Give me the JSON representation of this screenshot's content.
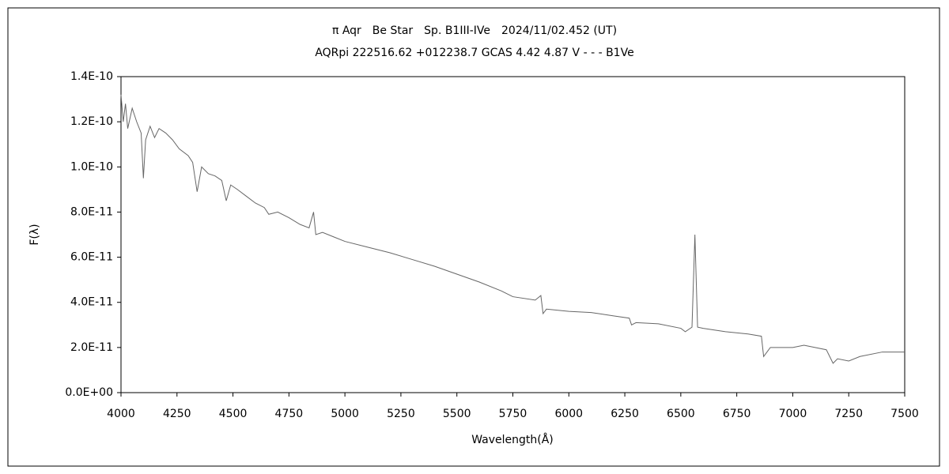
{
  "chart_data": {
    "type": "line",
    "title": "π Aqr　Be Star　Sp. B1III-IVe　2024/11/02.452 (UT)",
    "subtitle": "AQRpi 222516.62 +012238.7 GCAS 4.42 4.87 V - - - B1Ve",
    "x_label": "Wavelength(Å)",
    "y_label": "F(λ)",
    "xlim": [
      4000,
      7500
    ],
    "xticks": [
      4000,
      4250,
      4500,
      4750,
      5000,
      5250,
      5500,
      5750,
      6000,
      6250,
      6500,
      6750,
      7000,
      7250,
      7500
    ],
    "ylim": [
      0,
      1.4e-10
    ],
    "yticks": [
      {
        "value": 0,
        "label": "0.0E+00"
      },
      {
        "value": 2e-11,
        "label": "2.0E-11"
      },
      {
        "value": 4e-11,
        "label": "4.0E-11"
      },
      {
        "value": 6e-11,
        "label": "6.0E-11"
      },
      {
        "value": 8e-11,
        "label": "8.0E-11"
      },
      {
        "value": 1e-10,
        "label": "1.0E-10"
      },
      {
        "value": 1.2e-10,
        "label": "1.2E-10"
      },
      {
        "value": 1.4e-10,
        "label": "1.4E-10"
      }
    ],
    "grid": false,
    "x": [
      4000,
      4010,
      4020,
      4030,
      4050,
      4070,
      4090,
      4100,
      4110,
      4130,
      4150,
      4170,
      4200,
      4230,
      4260,
      4300,
      4320,
      4340,
      4360,
      4390,
      4420,
      4450,
      4470,
      4490,
      4520,
      4560,
      4600,
      4640,
      4660,
      4700,
      4750,
      4800,
      4840,
      4860,
      4870,
      4900,
      4950,
      5000,
      5100,
      5200,
      5300,
      5400,
      5500,
      5600,
      5700,
      5750,
      5850,
      5875,
      5885,
      5900,
      6000,
      6100,
      6200,
      6270,
      6280,
      6300,
      6400,
      6500,
      6520,
      6550,
      6563,
      6575,
      6600,
      6700,
      6800,
      6860,
      6870,
      6900,
      7000,
      7050,
      7100,
      7150,
      7180,
      7200,
      7250,
      7300,
      7400,
      7500
    ],
    "series": [
      {
        "name": "F(λ)",
        "color": "#666666",
        "values": [
          1.32e-10,
          1.2e-10,
          1.28e-10,
          1.17e-10,
          1.26e-10,
          1.2e-10,
          1.15e-10,
          9.5e-11,
          1.12e-10,
          1.18e-10,
          1.13e-10,
          1.17e-10,
          1.15e-10,
          1.12e-10,
          1.08e-10,
          1.05e-10,
          1.02e-10,
          8.9e-11,
          1e-10,
          9.7e-11,
          9.6e-11,
          9.4e-11,
          8.5e-11,
          9.2e-11,
          9e-11,
          8.7e-11,
          8.4e-11,
          8.2e-11,
          7.9e-11,
          8e-11,
          7.75e-11,
          7.45e-11,
          7.3e-11,
          8e-11,
          7e-11,
          7.1e-11,
          6.9e-11,
          6.7e-11,
          6.45e-11,
          6.2e-11,
          5.9e-11,
          5.6e-11,
          5.25e-11,
          4.9e-11,
          4.5e-11,
          4.25e-11,
          4.1e-11,
          4.3e-11,
          3.5e-11,
          3.7e-11,
          3.6e-11,
          3.55e-11,
          3.4e-11,
          3.3e-11,
          3e-11,
          3.1e-11,
          3.05e-11,
          2.85e-11,
          2.7e-11,
          2.9e-11,
          7e-11,
          2.9e-11,
          2.85e-11,
          2.7e-11,
          2.6e-11,
          2.5e-11,
          1.6e-11,
          2e-11,
          2e-11,
          2.1e-11,
          2e-11,
          1.9e-11,
          1.3e-11,
          1.5e-11,
          1.4e-11,
          1.6e-11,
          1.8e-11,
          1.8e-11
        ]
      }
    ]
  }
}
